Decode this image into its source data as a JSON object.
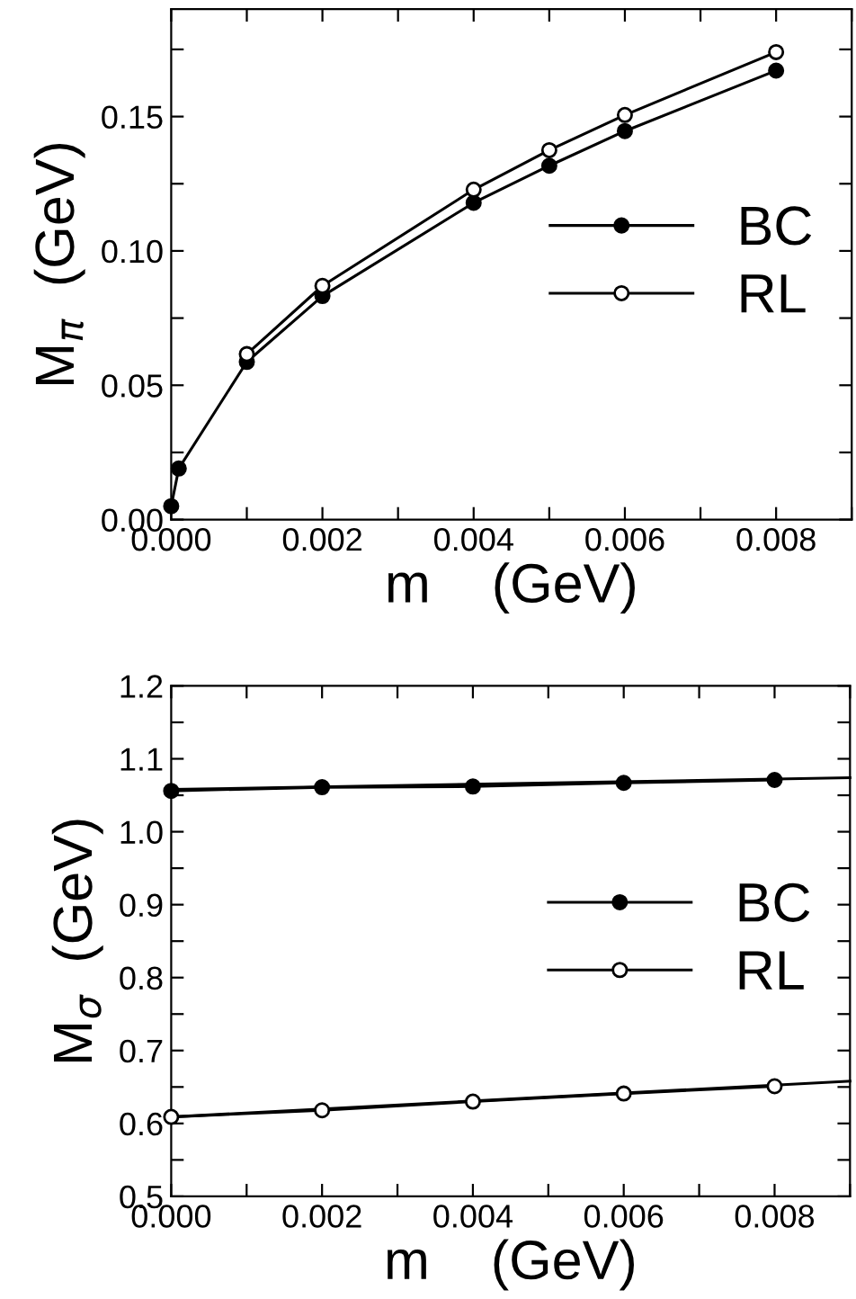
{
  "chart_data": [
    {
      "type": "line",
      "xlabel": "m    (GeV)",
      "ylabel": "M$_{π}$  (GeV)",
      "xlim": [
        0,
        0.009
      ],
      "ylim": [
        0,
        0.19
      ],
      "xticks": [
        {
          "value": 0,
          "label": "0.000"
        },
        {
          "value": 0.001,
          "label": null
        },
        {
          "value": 0.002,
          "label": "0.002"
        },
        {
          "value": 0.003,
          "label": null
        },
        {
          "value": 0.004,
          "label": "0.004"
        },
        {
          "value": 0.005,
          "label": null
        },
        {
          "value": 0.006,
          "label": "0.006"
        },
        {
          "value": 0.007,
          "label": null
        },
        {
          "value": 0.008,
          "label": "0.008"
        },
        {
          "value": 0.009,
          "label": null
        }
      ],
      "yticks": [
        {
          "value": 0,
          "label": "0.00"
        },
        {
          "value": 0.025,
          "label": null
        },
        {
          "value": 0.05,
          "label": "0.05"
        },
        {
          "value": 0.075,
          "label": null
        },
        {
          "value": 0.1,
          "label": "0.10"
        },
        {
          "value": 0.125,
          "label": null
        },
        {
          "value": 0.15,
          "label": "0.15"
        },
        {
          "value": 0.175,
          "label": null
        }
      ],
      "grid": false,
      "legend": "right",
      "line_style": "solid",
      "series": [
        {
          "name": "BC",
          "color": "#000000",
          "marker": "circle",
          "colors": [
            "#000000",
            "#000000",
            "#000000",
            "#000000",
            "#000000",
            "#000000",
            "#000000",
            "#000000"
          ],
          "x": [
            0,
            0.0001,
            0.001,
            0.002,
            0.004,
            0.005,
            0.006,
            0.008
          ],
          "values": [
            0.005,
            0.019,
            0.0587,
            0.0832,
            0.1179,
            0.1317,
            0.1446,
            0.1671
          ]
        },
        {
          "name": "RL",
          "color": "#000000",
          "marker": "circle",
          "colors": [
            "#ffffff",
            "#ffffff",
            "#ffffff",
            "#ffffff",
            "#ffffff",
            "#ffffff"
          ],
          "x": [
            0.001,
            0.002,
            0.004,
            0.005,
            0.006,
            0.008
          ],
          "values": [
            0.0616,
            0.087,
            0.1228,
            0.1375,
            0.1506,
            0.174
          ]
        }
      ]
    },
    {
      "type": "line",
      "xlabel": "m    (GeV)",
      "ylabel": "M$_{σ}$  (GeV)",
      "xlim": [
        0,
        0.009
      ],
      "ylim": [
        0.5,
        1.2
      ],
      "xticks": [
        {
          "value": 0,
          "label": "0.000"
        },
        {
          "value": 0.001,
          "label": null
        },
        {
          "value": 0.002,
          "label": "0.002"
        },
        {
          "value": 0.003,
          "label": null
        },
        {
          "value": 0.004,
          "label": "0.004"
        },
        {
          "value": 0.005,
          "label": null
        },
        {
          "value": 0.006,
          "label": "0.006"
        },
        {
          "value": 0.007,
          "label": null
        },
        {
          "value": 0.008,
          "label": "0.008"
        },
        {
          "value": 0.009,
          "label": null
        }
      ],
      "yticks": [
        0.5,
        {
          "value": 0.55,
          "label": null
        },
        0.6,
        {
          "value": 0.65,
          "label": null
        },
        0.7,
        {
          "value": 0.75,
          "label": null
        },
        0.8,
        {
          "value": 0.85,
          "label": null
        },
        0.9,
        {
          "value": 0.95,
          "label": null
        },
        {
          "value": 1.0,
          "label": "1.0"
        },
        {
          "value": 1.05,
          "label": null
        },
        1.1,
        {
          "value": 1.15,
          "label": null
        },
        1.2
      ],
      "grid": false,
      "legend": "right",
      "line_style": "solid",
      "series": [
        {
          "name": "BC",
          "color": "#000000",
          "marker": "circle",
          "colors": [
            "#000000",
            "#000000",
            "#000000",
            "#000000",
            "#000000"
          ],
          "x": [
            0,
            0.002,
            0.004,
            0.006,
            0.008
          ],
          "values": [
            1.056,
            1.061,
            1.062,
            1.067,
            1.071
          ]
        },
        {
          "name": "RL",
          "color": "#000000",
          "marker": "circle",
          "colors": [
            "#ffffff",
            "#ffffff",
            "#ffffff",
            "#ffffff",
            "#ffffff"
          ],
          "x": [
            0,
            0.002,
            0.004,
            0.006,
            0.008
          ],
          "values": [
            0.609,
            0.618,
            0.63,
            0.641,
            0.651
          ]
        },
        {
          "type": "line",
          "color": "#000000",
          "marker": "none",
          "x": [
            0,
            0.009
          ],
          "values": [
            1.058,
            1.074
          ]
        },
        {
          "type": "line",
          "color": "#000000",
          "marker": "none",
          "x": [
            0,
            0.009
          ],
          "values": [
            0.609,
            0.658
          ]
        }
      ]
    }
  ]
}
